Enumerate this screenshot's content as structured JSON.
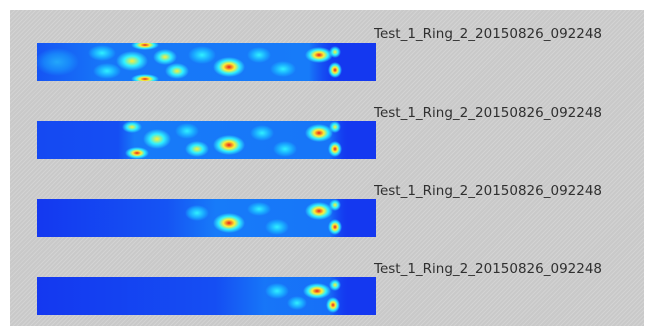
{
  "rows": [
    {
      "label": "Test_1_Ring_2_20150826_092248"
    },
    {
      "label": "Test_1_Ring_2_20150826_092248"
    },
    {
      "label": "Test_1_Ring_2_20150826_092248"
    },
    {
      "label": "Test_1_Ring_2_20150826_092248"
    }
  ],
  "colors": {
    "background": "#c9c9c9",
    "field_base": "#1438f0",
    "field_mid": "#19a8ff",
    "field_cyan": "#2ff0ff",
    "field_yellow": "#ffee33",
    "field_red": "#e8201c"
  }
}
